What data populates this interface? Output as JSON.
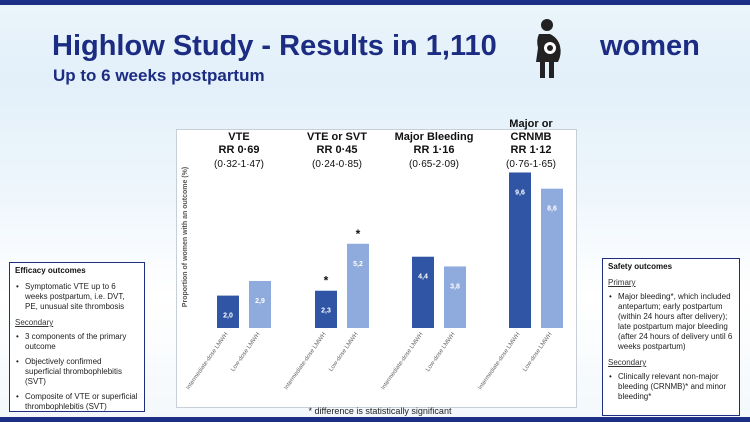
{
  "header": {
    "title": "Highlow Study - Results in 1,110",
    "title_suffix": "women",
    "subtitle": "Up to 6 weeks postpartum"
  },
  "icons": {
    "title_icon": "pregnant-woman-icon"
  },
  "colors": {
    "dark_bar": "#2f55a4",
    "light_bar": "#8faadc",
    "title": "#1b2c82",
    "border": "#1f2f80"
  },
  "chart_data": {
    "type": "bar",
    "ylabel": "Proportion of women with an outcome (%)",
    "series_labels": [
      "Intermediate-dose LMWH",
      "Low-dose LMWH"
    ],
    "groups": [
      {
        "title": "VTE",
        "rr": "RR 0·69",
        "ci": "(0·32-1·47)",
        "values": [
          2.0,
          2.9
        ],
        "labels": [
          "2,0",
          "2,9"
        ],
        "significant": false
      },
      {
        "title": "VTE or SVT",
        "rr": "RR 0·45",
        "ci": "(0·24-0·85)",
        "values": [
          2.3,
          5.2
        ],
        "labels": [
          "2,3",
          "5,2"
        ],
        "significant": true
      },
      {
        "title": "Major Bleeding",
        "rr": "RR 1·16",
        "ci": "(0·65-2·09)",
        "values": [
          4.4,
          3.8
        ],
        "labels": [
          "4,4",
          "3,8"
        ],
        "significant": false
      },
      {
        "title": "Major or CRNMB",
        "title_lines": [
          "Major or",
          "CRNMB"
        ],
        "rr": "RR 1·12",
        "ci": "(0·76-1·65)",
        "values": [
          9.6,
          8.6
        ],
        "labels": [
          "9,6",
          "8,6"
        ],
        "significant": false
      }
    ],
    "significance_marker": "*",
    "footnote": "* difference is statistically significant"
  },
  "efficacy_box": {
    "heading": "Efficacy outcomes",
    "items": [
      "Symptomatic VTE up to 6 weeks postpartum, i.e. DVT, PE, unusual site thrombosis"
    ],
    "secondary_label": "Secondary",
    "secondary_items": [
      "3 components of the primary outcome",
      "Objectively confirmed superficial thrombophlebitis (SVT)",
      "Composite of VTE or superficial thrombophlebitis (SVT)"
    ]
  },
  "safety_box": {
    "heading": "Safety outcomes",
    "primary_label": "Primary",
    "items": [
      "Major bleeding*, which included antepartum; early postpartum (within 24 hours after delivery); late postpartum major bleeding (after 24 hours of delivery until 6 weeks postpartum)"
    ],
    "secondary_label": "Secondary",
    "secondary_items": [
      "Clinically relevant non-major bleeding (CRNMB)* and minor bleeding*"
    ]
  }
}
